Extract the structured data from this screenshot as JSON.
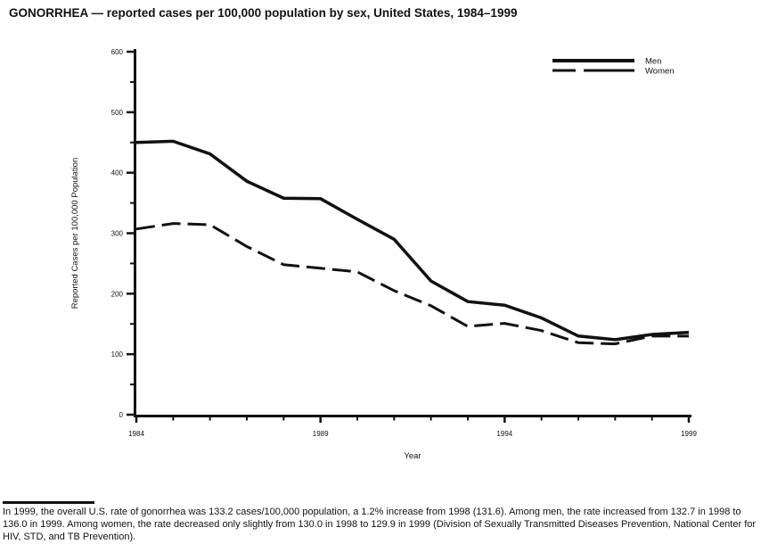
{
  "title": "GONORRHEA — reported cases per 100,000 population by sex, United States, 1984–1999",
  "chart_data": {
    "type": "line",
    "title": "GONORRHEA — reported cases per 100,000 population by sex, United States, 1984–1999",
    "x": [
      1984,
      1985,
      1986,
      1987,
      1988,
      1989,
      1990,
      1991,
      1992,
      1993,
      1994,
      1995,
      1996,
      1997,
      1998,
      1999
    ],
    "series": [
      {
        "name": "Men",
        "style": "solid",
        "values": [
          450,
          452,
          431,
          386,
          358,
          357,
          323,
          290,
          221,
          187,
          181,
          160,
          130,
          124,
          132.7,
          136.0
        ]
      },
      {
        "name": "Women",
        "style": "dashed",
        "values": [
          307,
          316,
          314,
          278,
          248,
          242,
          236,
          205,
          180,
          146,
          151,
          139,
          119,
          117,
          130.0,
          129.9
        ]
      }
    ],
    "xlabel": "Year",
    "ylabel": "Reported Cases per 100,000 Population",
    "ylim": [
      0,
      600
    ],
    "xlim": [
      1984,
      1999
    ],
    "y_major_ticks": [
      0,
      100,
      200,
      300,
      400,
      500,
      600
    ],
    "y_minor_step": 50,
    "x_labeled_ticks": [
      1984,
      1989,
      1994,
      1999
    ],
    "x_minor_step": 1,
    "grid": "off",
    "legend_position": "top-right",
    "line_color": "#111111",
    "background_color": "#ffffff"
  },
  "footnote": {
    "text": "In 1999, the overall U.S. rate of gonorrhea was 133.2 cases/100,000 population, a 1.2% increase from 1998 (131.6). Among men, the rate increased from 132.7 in 1998 to 136.0 in 1999. Among women, the rate decreased only slightly from 130.0 in 1998 to 129.9 in 1999 (Division of Sexually Transmitted Diseases Prevention, National Center for HIV, STD, and TB Prevention)."
  }
}
